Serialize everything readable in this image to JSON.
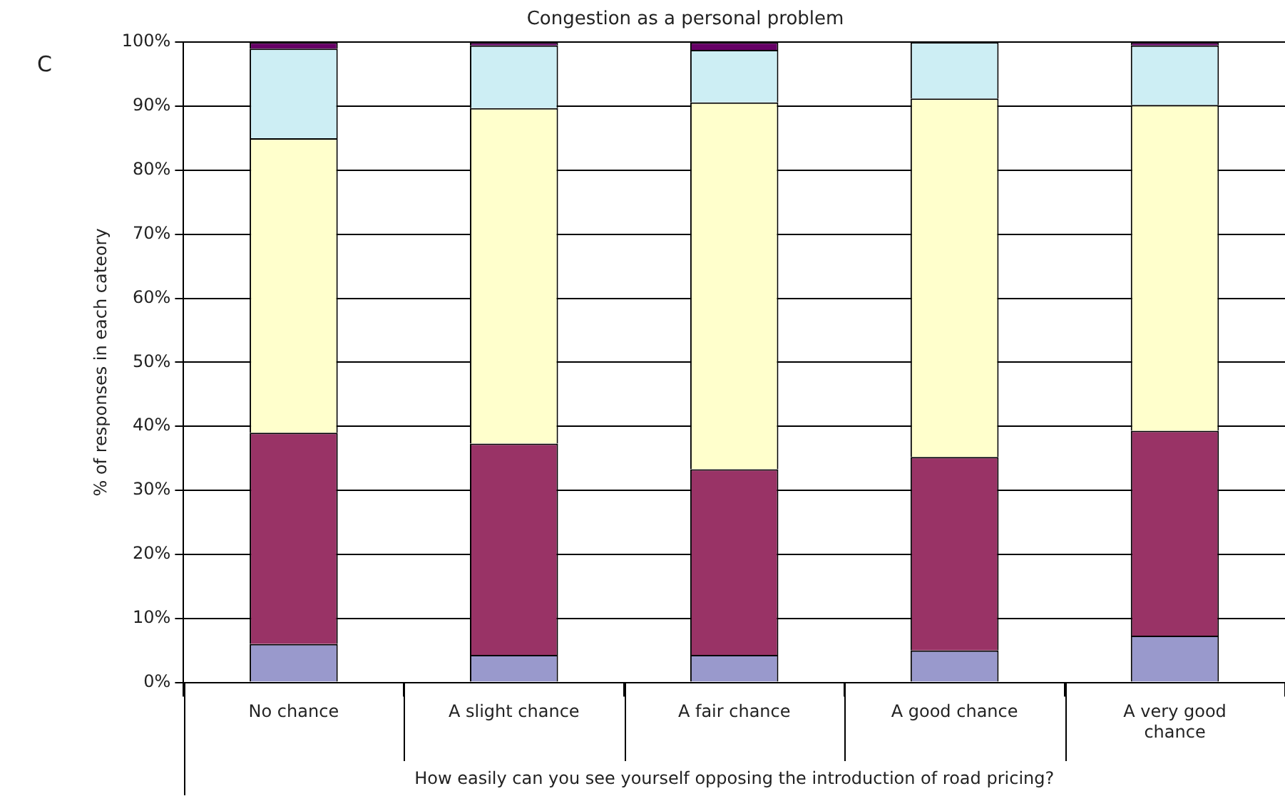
{
  "chart_data": {
    "type": "bar",
    "stacked": true,
    "title": "Congestion as a personal problem",
    "xlabel": "How easily can you see yourself opposing the introduction of road pricing?",
    "ylabel": "% of responses in each cateory",
    "annotations": [
      "C"
    ],
    "categories": [
      "No chance",
      "A slight chance",
      "A fair chance",
      "A good chance",
      "A very good chance"
    ],
    "series": [
      {
        "color": "#9999cc",
        "values": [
          6,
          4.3,
          4.3,
          5,
          7.3
        ]
      },
      {
        "color": "#993366",
        "values": [
          33,
          33,
          29,
          30.2,
          32
        ]
      },
      {
        "color": "#ffffcc",
        "values": [
          46,
          52.4,
          57.3,
          56,
          50.9
        ]
      },
      {
        "color": "#cdeef4",
        "values": [
          14,
          9.8,
          8.2,
          8.8,
          9.3
        ]
      },
      {
        "color": "#660066",
        "values": [
          1,
          0.5,
          1.2,
          0,
          0.5
        ]
      }
    ],
    "ylim": [
      0,
      100
    ],
    "yticks": [
      {
        "value": 0,
        "label": "0%"
      },
      {
        "value": 10,
        "label": "10%"
      },
      {
        "value": 20,
        "label": "20%"
      },
      {
        "value": 30,
        "label": "30%"
      },
      {
        "value": 40,
        "label": "40%"
      },
      {
        "value": 50,
        "label": "50%"
      },
      {
        "value": 60,
        "label": "60%"
      },
      {
        "value": 70,
        "label": "70%"
      },
      {
        "value": 80,
        "label": "80%"
      },
      {
        "value": 90,
        "label": "90%"
      },
      {
        "value": 100,
        "label": "100%"
      }
    ],
    "grid": "y",
    "legend": false
  }
}
